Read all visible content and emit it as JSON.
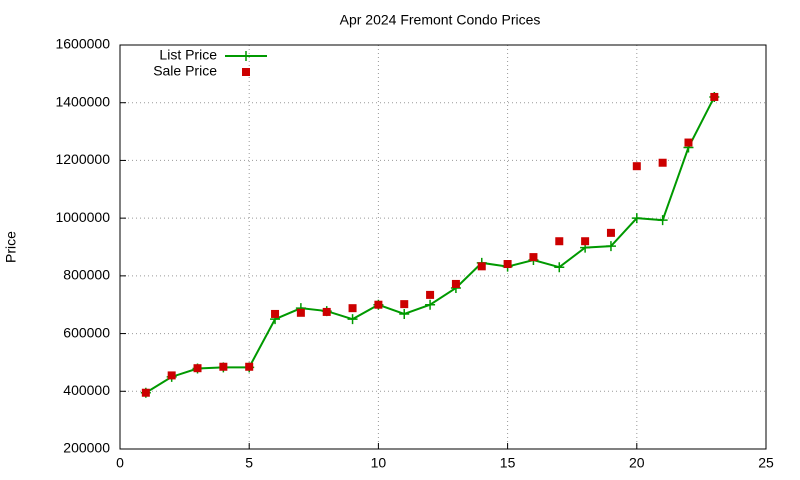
{
  "chart_data": {
    "type": "line",
    "title": "Apr 2024 Fremont Condo Prices",
    "y_label": "Price",
    "x": [
      1,
      2,
      3,
      4,
      5,
      6,
      7,
      8,
      9,
      10,
      11,
      12,
      13,
      14,
      15,
      16,
      17,
      18,
      19,
      20,
      21,
      22,
      23
    ],
    "series": [
      {
        "name": "List Price",
        "color": "#009900",
        "style": "line-plus",
        "values": [
          395000,
          450000,
          479000,
          483000,
          483000,
          650000,
          688000,
          678000,
          650000,
          700000,
          668000,
          700000,
          758000,
          845000,
          832000,
          855000,
          830000,
          898000,
          903000,
          1000000,
          993000,
          1245000,
          1420000
        ]
      },
      {
        "name": "Sale Price",
        "color": "#cc0000",
        "style": "square",
        "values": [
          395000,
          455000,
          480000,
          485000,
          485000,
          668000,
          672000,
          675000,
          688000,
          700000,
          702000,
          734000,
          772000,
          833000,
          841000,
          865000,
          920000,
          920000,
          949000,
          1180000,
          1192000,
          1262000,
          1420000
        ]
      }
    ],
    "xlim": [
      0,
      25
    ],
    "xticks": [
      0,
      5,
      10,
      15,
      20,
      25
    ],
    "ylim": [
      200000,
      1600000
    ],
    "yticks": [
      200000,
      400000,
      600000,
      800000,
      1000000,
      1200000,
      1400000,
      1600000
    ],
    "grid": true,
    "legend": "top-left"
  }
}
